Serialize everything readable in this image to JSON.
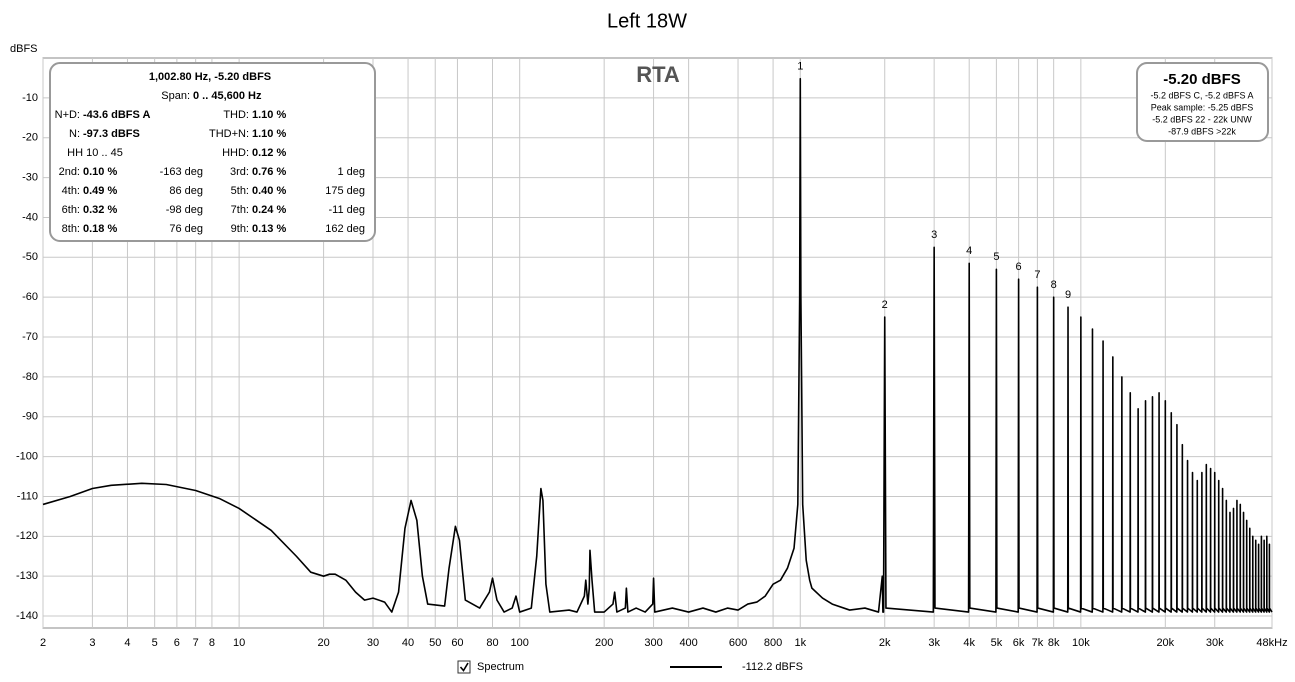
{
  "chart_data": {
    "type": "line",
    "title": "Left 18W",
    "y_label": "dBFS",
    "plot_label": "RTA",
    "xscale": "log",
    "grid": true,
    "xlim": [
      2,
      48000
    ],
    "ylim": [
      -143,
      0
    ],
    "yticks": [
      -10,
      -20,
      -30,
      -40,
      -50,
      -60,
      -70,
      -80,
      -90,
      -100,
      -110,
      -120,
      -130,
      -140
    ],
    "xticks": [
      2,
      3,
      4,
      5,
      6,
      7,
      8,
      10,
      20,
      30,
      40,
      50,
      60,
      80,
      100,
      200,
      300,
      400,
      600,
      800,
      {
        "value": 1000,
        "label": "1k"
      },
      {
        "value": 2000,
        "label": "2k"
      },
      {
        "value": 3000,
        "label": "3k"
      },
      {
        "value": 4000,
        "label": "4k"
      },
      {
        "value": 5000,
        "label": "5k"
      },
      {
        "value": 6000,
        "label": "6k"
      },
      {
        "value": 7000,
        "label": "7k"
      },
      {
        "value": 8000,
        "label": "8k"
      },
      {
        "value": 10000,
        "label": "10k"
      },
      {
        "value": 20000,
        "label": "20k"
      },
      {
        "value": 30000,
        "label": "30k"
      },
      {
        "value": 48000,
        "label": "48kHz"
      }
    ],
    "series": [
      {
        "name": "Spectrum",
        "color": "#000000",
        "x": [
          2,
          2.5,
          3,
          3.5,
          4.5,
          5.5,
          7,
          8.5,
          10,
          13,
          16,
          18,
          20,
          21,
          22,
          24,
          26,
          28,
          30,
          33,
          35,
          37,
          39,
          41,
          43,
          45,
          47,
          54,
          56,
          59,
          61,
          64,
          72,
          78,
          80,
          83,
          88,
          94,
          97,
          100,
          110,
          115,
          119,
          121,
          124,
          128,
          150,
          160,
          170,
          172,
          175,
          177,
          178,
          181,
          185,
          200,
          215,
          218,
          222,
          238,
          240,
          243,
          260,
          280,
          298,
          300,
          303,
          350,
          400,
          450,
          500,
          550,
          600,
          650,
          700,
          750,
          800,
          850,
          900,
          950,
          980,
          995,
          1000,
          1005,
          1020,
          1050,
          1080,
          1100,
          1200,
          1300,
          1500,
          1700,
          1900,
          1960,
          1970,
          1980,
          2000,
          2020,
          2980,
          3000,
          3020,
          3980,
          4000,
          4020,
          4980,
          5000,
          5020,
          5980,
          6000,
          6020,
          6980,
          7000,
          7020,
          7980,
          8000,
          8020,
          8980,
          9000,
          9020,
          9980,
          10000,
          10020,
          10980,
          11000,
          11020,
          11980,
          12000,
          12020,
          12980,
          13000,
          13020,
          13980,
          14000,
          14020,
          14980,
          15000,
          15020,
          15980,
          16000,
          16020,
          16980,
          17000,
          17020,
          17980,
          18000,
          18020,
          18980,
          19000,
          19020,
          19980,
          20000,
          20020,
          20980,
          21000,
          21020,
          21980,
          22000,
          22020,
          22980,
          23000,
          23020,
          23980,
          24000,
          24020,
          24980,
          25000,
          25020,
          25980,
          26000,
          26020,
          26980,
          27000,
          27020,
          27980,
          28000,
          28020,
          28980,
          29000,
          29020,
          29980,
          30000,
          30020,
          30980,
          31000,
          31020,
          31980,
          32000,
          32020,
          32980,
          33000,
          33020,
          33980,
          34000,
          34020,
          34980,
          35000,
          35020,
          35980,
          36000,
          36020,
          36980,
          37000,
          37020,
          37980,
          38000,
          38020,
          38980,
          39000,
          39020,
          39980,
          40000,
          40020,
          40980,
          41000,
          41020,
          41980,
          42000,
          42020,
          42980,
          43000,
          43020,
          43980,
          44000,
          44020,
          44980,
          45000,
          45020,
          45980,
          46000,
          46020,
          46980,
          47000,
          47020,
          48000
        ],
        "values": [
          -112,
          -110,
          -108,
          -107.2,
          -106.7,
          -107,
          -108.5,
          -110.5,
          -113,
          -118.5,
          -125,
          -129,
          -130,
          -129.5,
          -129.5,
          -131,
          -134,
          -136,
          -135.5,
          -136.5,
          -139,
          -134,
          -118,
          -111,
          -116,
          -130,
          -137,
          -137.5,
          -128,
          -117.5,
          -121,
          -136,
          -138,
          -134,
          -130.5,
          -136,
          -139,
          -138,
          -135,
          -139,
          -138,
          -125,
          -108,
          -111,
          -132,
          -139,
          -138.5,
          -139,
          -135,
          -131,
          -137,
          -133,
          -123.5,
          -131,
          -139,
          -139,
          -137,
          -134,
          -139,
          -138,
          -133,
          -139,
          -138,
          -139,
          -137,
          -130.5,
          -139,
          -138,
          -139,
          -138,
          -139,
          -138,
          -138.5,
          -137,
          -136.5,
          -135,
          -132,
          -131,
          -128,
          -123,
          -112,
          -60,
          -5.2,
          -60,
          -112,
          -126,
          -131,
          -133,
          -135.5,
          -137,
          -138.5,
          -138,
          -139,
          -130,
          -139,
          -139,
          -65,
          -138,
          -139,
          -47.5,
          -138,
          -139,
          -51.5,
          -138,
          -139,
          -53,
          -138,
          -139,
          -55.5,
          -138,
          -139,
          -57.5,
          -138,
          -139,
          -60,
          -138,
          -139,
          -62.5,
          -138,
          -139,
          -65,
          -138,
          -139,
          -68,
          -138,
          -139,
          -71,
          -138,
          -139,
          -75,
          -138,
          -139,
          -80,
          -138,
          -139,
          -84,
          -138,
          -139,
          -88,
          -138,
          -139,
          -86,
          -138,
          -139,
          -85,
          -138,
          -139,
          -84,
          -138,
          -139,
          -86,
          -138,
          -139,
          -89,
          -138,
          -139,
          -92,
          -138,
          -139,
          -97,
          -138,
          -139,
          -101,
          -138,
          -139,
          -104,
          -138,
          -139,
          -106,
          -138,
          -139,
          -104,
          -138,
          -139,
          -102,
          -138,
          -139,
          -103,
          -138,
          -139,
          -104,
          -138,
          -139,
          -106,
          -138,
          -139,
          -108,
          -138,
          -139,
          -111,
          -138,
          -139,
          -114,
          -138,
          -139,
          -113,
          -138,
          -139,
          -111,
          -138,
          -139,
          -112,
          -138,
          -139,
          -114,
          -138,
          -139,
          -116,
          -138,
          -139,
          -118,
          -138,
          -139,
          -120,
          -138,
          -139,
          -121,
          -138,
          -139,
          -122,
          -138,
          -139,
          -120,
          -138,
          -139,
          -121,
          -138,
          -139,
          -120,
          -138,
          -139,
          -122,
          -138,
          -139
        ]
      }
    ],
    "legend_note": "-112.2 dBFS",
    "harmonic_labels": [
      {
        "harmonic": 1,
        "x": 1000,
        "y": -5.2
      },
      {
        "harmonic": 2,
        "x": 2000,
        "y": -65
      },
      {
        "harmonic": 3,
        "x": 3000,
        "y": -47.5
      },
      {
        "harmonic": 4,
        "x": 4000,
        "y": -51.5
      },
      {
        "harmonic": 5,
        "x": 5000,
        "y": -53
      },
      {
        "harmonic": 6,
        "x": 6000,
        "y": -55.5
      },
      {
        "harmonic": 7,
        "x": 7000,
        "y": -57.5
      },
      {
        "harmonic": 8,
        "x": 8000,
        "y": -60
      },
      {
        "harmonic": 9,
        "x": 9000,
        "y": -62.5
      }
    ],
    "info_panel": {
      "title": "1,002.80 Hz, -5.20 dBFS",
      "span": {
        "label": "Span:",
        "value": "0 .. 45,600 Hz"
      },
      "rows": [
        [
          {
            "label": "N+D:",
            "value": "-43.6 dBFS A"
          },
          {
            "label": "THD:",
            "value": "1.10 %"
          }
        ],
        [
          {
            "label": "N:",
            "value": "-97.3 dBFS"
          },
          {
            "label": "THD+N:",
            "value": "1.10 %"
          }
        ],
        [
          {
            "label": "HH 10 .. 45"
          },
          {
            "label": "HHD:",
            "value": "0.12 %"
          }
        ],
        [
          {
            "label": "2nd:",
            "value": "0.10 %",
            "phase": "-163 deg"
          },
          {
            "label": "3rd:",
            "value": "0.76 %",
            "phase": "1 deg"
          }
        ],
        [
          {
            "label": "4th:",
            "value": "0.49 %",
            "phase": "86 deg"
          },
          {
            "label": "5th:",
            "value": "0.40 %",
            "phase": "175 deg"
          }
        ],
        [
          {
            "label": "6th:",
            "value": "0.32 %",
            "phase": "-98 deg"
          },
          {
            "label": "7th:",
            "value": "0.24 %",
            "phase": "-11 deg"
          }
        ],
        [
          {
            "label": "8th:",
            "value": "0.18 %",
            "phase": "76 deg"
          },
          {
            "label": "9th:",
            "value": "0.13 %",
            "phase": "162 deg"
          }
        ]
      ]
    },
    "level_panel": {
      "level": "-5.20 dBFS",
      "lines": [
        "-5.2 dBFS C, -5.2 dBFS A",
        "Peak sample: -5.25 dBFS",
        "-5.2 dBFS 22 - 22k UNW",
        "-87.9 dBFS >22k"
      ]
    }
  }
}
